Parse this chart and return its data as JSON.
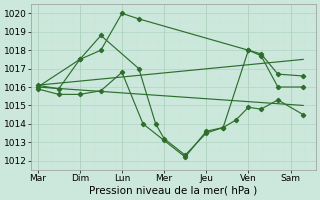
{
  "x_labels": [
    "Mar",
    "Dim",
    "Lun",
    "Mer",
    "Jeu",
    "Ven",
    "Sam"
  ],
  "line_color": "#2d6e2d",
  "bg_color": "#cce8dc",
  "grid_major_color": "#b0d4c0",
  "grid_minor_color": "#c4e4d4",
  "ylabel_ticks": [
    1012,
    1013,
    1014,
    1015,
    1016,
    1017,
    1018,
    1019,
    1020
  ],
  "xlabel": "Pression niveau de la mer( hPa )",
  "ylim": [
    1011.5,
    1020.5
  ],
  "xlim": [
    -0.15,
    6.6
  ],
  "tick_fontsize": 6.5,
  "xlabel_fontsize": 7.5,
  "line1_x": [
    0,
    1.0,
    1.5,
    2.0,
    2.4,
    5.0,
    5.3,
    5.7,
    6.3
  ],
  "line1_y": [
    1016.0,
    1017.5,
    1018.0,
    1020.0,
    1019.7,
    1018.0,
    1017.7,
    1016.0,
    1016.0
  ],
  "line2_x": [
    0,
    0.5,
    1.0,
    1.5,
    2.0,
    2.5,
    3.0,
    3.5,
    4.0,
    4.4,
    4.7,
    5.0,
    5.3,
    5.7,
    6.3
  ],
  "line2_y": [
    1015.9,
    1015.6,
    1015.6,
    1015.8,
    1016.8,
    1014.0,
    1013.1,
    1012.2,
    1013.6,
    1013.8,
    1014.2,
    1014.9,
    1014.8,
    1015.3,
    1014.5
  ],
  "line3_x": [
    0,
    0.5,
    1.0,
    1.5,
    2.4,
    2.8,
    3.0,
    3.5,
    4.0,
    4.4,
    5.0,
    5.3,
    5.7,
    6.3
  ],
  "line3_y": [
    1016.1,
    1015.9,
    1017.5,
    1018.8,
    1017.0,
    1014.0,
    1013.2,
    1012.3,
    1013.5,
    1013.8,
    1018.0,
    1017.8,
    1016.7,
    1016.6
  ],
  "trend1_x": [
    0,
    6.3
  ],
  "trend1_y": [
    1016.1,
    1017.5
  ],
  "trend2_x": [
    0,
    6.3
  ],
  "trend2_y": [
    1016.0,
    1015.0
  ],
  "day_x": [
    0,
    1.0,
    2.0,
    3.0,
    4.0,
    5.0,
    6.0
  ]
}
